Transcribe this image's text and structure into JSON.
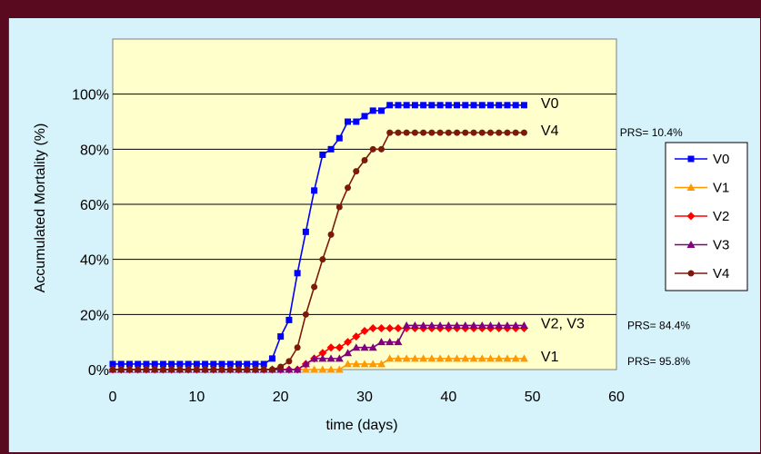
{
  "colors": {
    "slide_background": "#5a0a1e",
    "frame_background": "#d6f2fb",
    "plot_background": "#ffffcc"
  },
  "chart_data": {
    "type": "line",
    "title": "",
    "xlabel": "time (days)",
    "ylabel": "Accumulated Mortality (%)",
    "xlim": [
      0,
      60
    ],
    "ylim": [
      0,
      1.2
    ],
    "x_ticks": [
      "0",
      "10",
      "20",
      "30",
      "40",
      "50",
      "60"
    ],
    "y_ticks": [
      "0%",
      "20%",
      "40%",
      "60%",
      "80%",
      "100%"
    ],
    "grid": "horizontal",
    "legend_position": "right",
    "series": [
      {
        "name": "V0",
        "color": "#0000ff",
        "marker": "square",
        "x": [
          0,
          1,
          2,
          3,
          4,
          5,
          6,
          7,
          8,
          9,
          10,
          11,
          12,
          13,
          14,
          15,
          16,
          17,
          18,
          19,
          20,
          21,
          22,
          23,
          24,
          25,
          26,
          27,
          28,
          29,
          30,
          31,
          32,
          33,
          34,
          35,
          36,
          37,
          38,
          39,
          40,
          41,
          42,
          43,
          44,
          45,
          46,
          47,
          48,
          49
        ],
        "y": [
          0.02,
          0.02,
          0.02,
          0.02,
          0.02,
          0.02,
          0.02,
          0.02,
          0.02,
          0.02,
          0.02,
          0.02,
          0.02,
          0.02,
          0.02,
          0.02,
          0.02,
          0.02,
          0.02,
          0.04,
          0.12,
          0.18,
          0.35,
          0.5,
          0.65,
          0.78,
          0.8,
          0.84,
          0.9,
          0.9,
          0.92,
          0.94,
          0.94,
          0.96,
          0.96,
          0.96,
          0.96,
          0.96,
          0.96,
          0.96,
          0.96,
          0.96,
          0.96,
          0.96,
          0.96,
          0.96,
          0.96,
          0.96,
          0.96,
          0.96
        ]
      },
      {
        "name": "V1",
        "color": "#ff9900",
        "marker": "triangle",
        "x": [
          0,
          1,
          2,
          3,
          4,
          5,
          6,
          7,
          8,
          9,
          10,
          11,
          12,
          13,
          14,
          15,
          16,
          17,
          18,
          19,
          20,
          21,
          22,
          23,
          24,
          25,
          26,
          27,
          28,
          29,
          30,
          31,
          32,
          33,
          34,
          35,
          36,
          37,
          38,
          39,
          40,
          41,
          42,
          43,
          44,
          45,
          46,
          47,
          48,
          49
        ],
        "y": [
          0,
          0,
          0,
          0,
          0,
          0,
          0,
          0,
          0,
          0,
          0,
          0,
          0,
          0,
          0,
          0,
          0,
          0,
          0,
          0,
          0,
          0,
          0,
          0,
          0,
          0,
          0,
          0,
          0.02,
          0.02,
          0.02,
          0.02,
          0.02,
          0.04,
          0.04,
          0.04,
          0.04,
          0.04,
          0.04,
          0.04,
          0.04,
          0.04,
          0.04,
          0.04,
          0.04,
          0.04,
          0.04,
          0.04,
          0.04,
          0.04
        ]
      },
      {
        "name": "V2",
        "color": "#ff0000",
        "marker": "diamond",
        "x": [
          0,
          1,
          2,
          3,
          4,
          5,
          6,
          7,
          8,
          9,
          10,
          11,
          12,
          13,
          14,
          15,
          16,
          17,
          18,
          19,
          20,
          21,
          22,
          23,
          24,
          25,
          26,
          27,
          28,
          29,
          30,
          31,
          32,
          33,
          34,
          35,
          36,
          37,
          38,
          39,
          40,
          41,
          42,
          43,
          44,
          45,
          46,
          47,
          48,
          49
        ],
        "y": [
          0,
          0,
          0,
          0,
          0,
          0,
          0,
          0,
          0,
          0,
          0,
          0,
          0,
          0,
          0,
          0,
          0,
          0,
          0,
          0,
          0,
          0,
          0,
          0.02,
          0.04,
          0.06,
          0.08,
          0.08,
          0.1,
          0.12,
          0.14,
          0.15,
          0.15,
          0.15,
          0.15,
          0.15,
          0.15,
          0.15,
          0.15,
          0.15,
          0.15,
          0.15,
          0.15,
          0.15,
          0.15,
          0.15,
          0.15,
          0.15,
          0.15,
          0.15
        ]
      },
      {
        "name": "V3",
        "color": "#800080",
        "marker": "triangle",
        "x": [
          0,
          1,
          2,
          3,
          4,
          5,
          6,
          7,
          8,
          9,
          10,
          11,
          12,
          13,
          14,
          15,
          16,
          17,
          18,
          19,
          20,
          21,
          22,
          23,
          24,
          25,
          26,
          27,
          28,
          29,
          30,
          31,
          32,
          33,
          34,
          35,
          36,
          37,
          38,
          39,
          40,
          41,
          42,
          43,
          44,
          45,
          46,
          47,
          48,
          49
        ],
        "y": [
          0,
          0,
          0,
          0,
          0,
          0,
          0,
          0,
          0,
          0,
          0,
          0,
          0,
          0,
          0,
          0,
          0,
          0,
          0,
          0,
          0,
          0,
          0,
          0.02,
          0.04,
          0.04,
          0.04,
          0.04,
          0.06,
          0.08,
          0.08,
          0.08,
          0.1,
          0.1,
          0.1,
          0.16,
          0.16,
          0.16,
          0.16,
          0.16,
          0.16,
          0.16,
          0.16,
          0.16,
          0.16,
          0.16,
          0.16,
          0.16,
          0.16,
          0.16
        ]
      },
      {
        "name": "V4",
        "color": "#7b1a0a",
        "marker": "circle",
        "x": [
          0,
          1,
          2,
          3,
          4,
          5,
          6,
          7,
          8,
          9,
          10,
          11,
          12,
          13,
          14,
          15,
          16,
          17,
          18,
          19,
          20,
          21,
          22,
          23,
          24,
          25,
          26,
          27,
          28,
          29,
          30,
          31,
          32,
          33,
          34,
          35,
          36,
          37,
          38,
          39,
          40,
          41,
          42,
          43,
          44,
          45,
          46,
          47,
          48,
          49
        ],
        "y": [
          0,
          0,
          0,
          0,
          0,
          0,
          0,
          0,
          0,
          0,
          0,
          0,
          0,
          0,
          0,
          0,
          0,
          0,
          0,
          0,
          0.01,
          0.03,
          0.08,
          0.2,
          0.3,
          0.4,
          0.49,
          0.59,
          0.66,
          0.72,
          0.76,
          0.8,
          0.8,
          0.86,
          0.86,
          0.86,
          0.86,
          0.86,
          0.86,
          0.86,
          0.86,
          0.86,
          0.86,
          0.86,
          0.86,
          0.86,
          0.86,
          0.86,
          0.86,
          0.86
        ]
      }
    ],
    "annotations": {
      "end_labels": [
        {
          "text": "V0",
          "x": 51,
          "y": 0.97
        },
        {
          "text": "V4",
          "x": 51,
          "y": 0.87
        },
        {
          "text": "V2, V3",
          "x": 51,
          "y": 0.17
        },
        {
          "text": "V1",
          "x": 51,
          "y": 0.05
        }
      ],
      "prs_labels": [
        {
          "text": "PRS= 10.4%",
          "x": 60.4,
          "y": 0.86
        },
        {
          "text": "PRS= 84.4%",
          "x": 61.3,
          "y": 0.16
        },
        {
          "text": "PRS= 95.8%",
          "x": 61.3,
          "y": 0.03
        }
      ]
    }
  }
}
